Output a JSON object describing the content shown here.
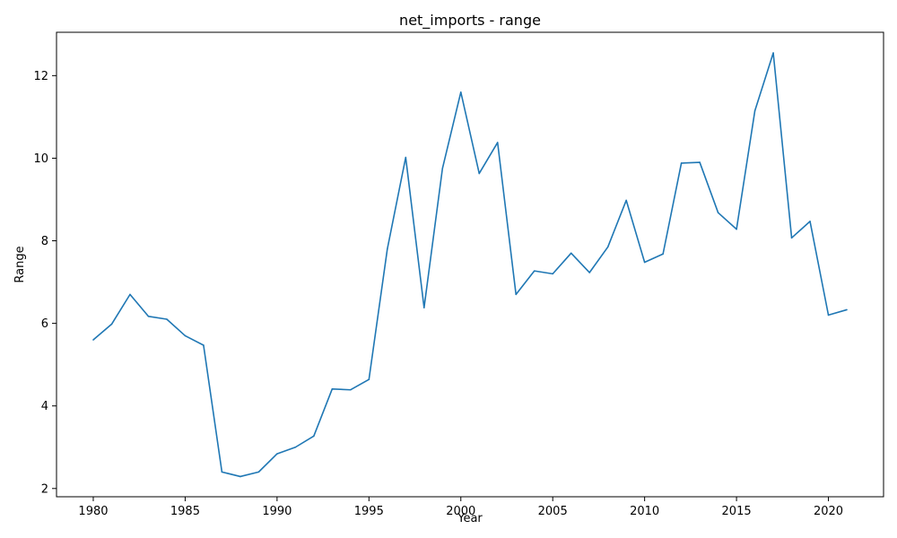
{
  "chart_data": {
    "type": "line",
    "title": "net_imports - range",
    "xlabel": "Year",
    "ylabel": "Range",
    "xlim": [
      1978,
      2023
    ],
    "ylim": [
      1.8,
      13.05
    ],
    "xticks": [
      1980,
      1985,
      1990,
      1995,
      2000,
      2005,
      2010,
      2015,
      2020
    ],
    "yticks": [
      2,
      4,
      6,
      8,
      10,
      12
    ],
    "grid": false,
    "line_color": "#1f77b4",
    "x": [
      1980,
      1981,
      1982,
      1983,
      1984,
      1985,
      1986,
      1987,
      1988,
      1989,
      1990,
      1991,
      1992,
      1993,
      1994,
      1995,
      1996,
      1997,
      1998,
      1999,
      2000,
      2001,
      2002,
      2003,
      2004,
      2005,
      2006,
      2007,
      2008,
      2009,
      2010,
      2011,
      2012,
      2013,
      2014,
      2015,
      2016,
      2017,
      2018,
      2019,
      2020,
      2021
    ],
    "y": [
      5.6,
      5.98,
      6.7,
      6.17,
      6.1,
      5.7,
      5.47,
      2.4,
      2.29,
      2.4,
      2.84,
      3.0,
      3.27,
      4.41,
      4.39,
      4.64,
      7.8,
      10.02,
      6.38,
      9.75,
      11.6,
      9.63,
      10.38,
      6.7,
      7.27,
      7.2,
      7.7,
      7.23,
      7.85,
      8.98,
      7.48,
      7.68,
      9.88,
      9.9,
      8.68,
      8.28,
      11.15,
      12.55,
      8.07,
      8.47,
      6.2,
      6.33
    ]
  }
}
